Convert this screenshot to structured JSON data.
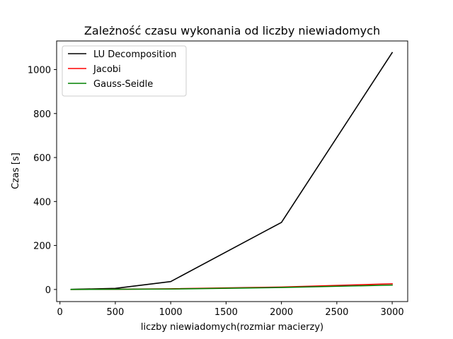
{
  "chart_data": {
    "type": "line",
    "title": "Zależność czasu wykonania od liczby niewiadomych",
    "xlabel": "liczby niewiadomych(rozmiar macierzy)",
    "ylabel": "Czas [s]",
    "xlim": [
      -30,
      3140
    ],
    "ylim": [
      -55,
      1130
    ],
    "xticks": [
      0,
      500,
      1000,
      1500,
      2000,
      2500,
      3000
    ],
    "yticks": [
      0,
      200,
      400,
      600,
      800,
      1000
    ],
    "grid": false,
    "legend_position": "top-left",
    "x": [
      100,
      500,
      1000,
      2000,
      3000
    ],
    "series": [
      {
        "name": "LU Decomposition",
        "color": "#000000",
        "values": [
          0.5,
          5,
          36,
          305,
          1077
        ]
      },
      {
        "name": "Jacobi",
        "color": "#ff0000",
        "values": [
          0.1,
          1,
          3,
          11,
          26
        ]
      },
      {
        "name": "Gauss-Seidle",
        "color": "#008000",
        "values": [
          0.1,
          1,
          2,
          9,
          20
        ]
      }
    ]
  }
}
